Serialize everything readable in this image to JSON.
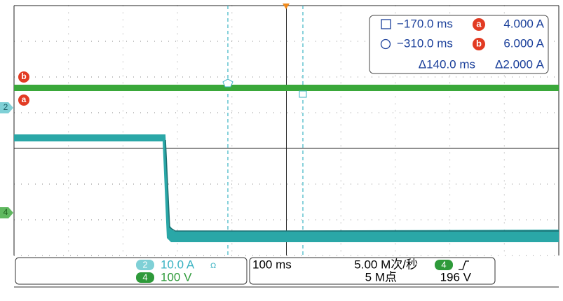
{
  "cursor_readout": {
    "t1": "−170.0 ms",
    "marker_a": "a",
    "v1": "4.000 A",
    "t2": "−310.0 ms",
    "marker_b": "b",
    "v2": "6.000 A",
    "dt": "Δ140.0 ms",
    "dv": "Δ2.000 A"
  },
  "markers": {
    "b": "b",
    "a": "a",
    "ch2": "2",
    "ch4": "4"
  },
  "channels": [
    {
      "id": "2",
      "scale": "10.0 A",
      "unit_icon": "Ω"
    },
    {
      "id": "4",
      "scale": "100 V"
    }
  ],
  "acquisition": {
    "timebase": "100 ms",
    "sample_rate": "5.00 M次/秒",
    "memory": "5 M点",
    "trigger_channel": "4",
    "trigger_level": "196 V"
  }
}
